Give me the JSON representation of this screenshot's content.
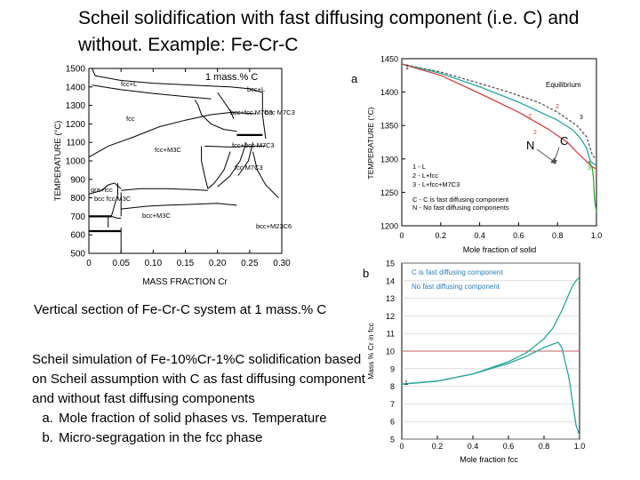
{
  "title": "Scheil solidification with fast diffusing component (i.e. C) and without. Example: Fe-Cr-C",
  "caption_vertical_section": "Vertical section of Fe-Cr-C system at 1 mass.% C",
  "caption_scheil": {
    "intro": "Scheil simulation of Fe-10%Cr-1%C solidification based on Scheil assumption with C as fast diffusing component and without fast diffusing components",
    "items": [
      "Mole fraction of solid phases vs. Temperature",
      "Micro-segragation in the fcc phase"
    ]
  },
  "figure_labels": {
    "a": "a",
    "b": "b"
  },
  "colors": {
    "teal": "#2aa59c",
    "red": "#d04040",
    "green": "#3aa63a",
    "grid": "#c8c8c8",
    "blue_text": "#2a7fc0",
    "redline": "#c06060"
  },
  "chart_data": [
    {
      "type": "line",
      "id": "phase-diagram",
      "title": "1 mass.% C",
      "xlabel": "MASS FRACTION Cr",
      "ylabel": "TEMPERATURE (°C)",
      "xlim": [
        0,
        0.3
      ],
      "ylim": [
        500,
        1500
      ],
      "xticks": [
        "0",
        "0.05",
        "0.10",
        "0.15",
        "0.20",
        "0.25",
        "0.30"
      ],
      "yticks": [
        "500",
        "600",
        "700",
        "800",
        "900",
        "1000",
        "1100",
        "1200",
        "1300",
        "1400",
        "1500"
      ],
      "region_labels": [
        "fcc+L",
        "bcc+L",
        "fcc",
        "bcc+fcc M7C3",
        "bcc M7C3",
        "fcc+M3C",
        "fcc+bcc M7C3",
        "fcc M7C3",
        "gra+fcc",
        "bcc fcc M3C",
        "bcc+M3C",
        "bcc+M23C6"
      ],
      "boundaries": [
        {
          "points": [
            [
              0.005,
              1500
            ],
            [
              0.01,
              1460
            ],
            [
              0.05,
              1435
            ],
            [
              0.1,
              1420
            ],
            [
              0.16,
              1410
            ],
            [
              0.22,
              1400
            ],
            [
              0.25,
              1390
            ],
            [
              0.27,
              1370
            ]
          ]
        },
        {
          "points": [
            [
              0.005,
              1410
            ],
            [
              0.05,
              1385
            ],
            [
              0.1,
              1365
            ],
            [
              0.15,
              1348
            ],
            [
              0.19,
              1335
            ]
          ]
        },
        {
          "points": [
            [
              0.2,
              1370
            ],
            [
              0.21,
              1320
            ],
            [
              0.22,
              1270
            ],
            [
              0.225,
              1230
            ]
          ]
        },
        {
          "points": [
            [
              0.27,
              1370
            ],
            [
              0.27,
              1250
            ],
            [
              0.275,
              1120
            ]
          ]
        },
        {
          "points": [
            [
              0.165,
              1330
            ],
            [
              0.17,
              1300
            ],
            [
              0.175,
              1250
            ],
            [
              0.19,
              1200
            ],
            [
              0.21,
              1170
            ],
            [
              0.23,
              1160
            ]
          ]
        },
        {
          "points": [
            [
              0.0,
              1020
            ],
            [
              0.03,
              1080
            ],
            [
              0.07,
              1130
            ],
            [
              0.11,
              1185
            ],
            [
              0.15,
              1220
            ],
            [
              0.19,
              1250
            ],
            [
              0.22,
              1262
            ],
            [
              0.26,
              1255
            ]
          ]
        },
        {
          "points": [
            [
              0.18,
              1080
            ],
            [
              0.22,
              1075
            ],
            [
              0.255,
              1080
            ],
            [
              0.275,
              1080
            ]
          ]
        },
        {
          "points": [
            [
              0.175,
              1080
            ],
            [
              0.175,
              1000
            ],
            [
              0.18,
              920
            ],
            [
              0.185,
              850
            ]
          ]
        },
        {
          "points": [
            [
              0.22,
              1050
            ],
            [
              0.21,
              950
            ],
            [
              0.195,
              880
            ],
            [
              0.185,
              850
            ]
          ]
        },
        {
          "points": [
            [
              0.245,
              1100
            ],
            [
              0.235,
              1000
            ],
            [
              0.22,
              920
            ],
            [
              0.2,
              860
            ]
          ]
        },
        {
          "points": [
            [
              0.255,
              1100
            ],
            [
              0.248,
              1000
            ],
            [
              0.232,
              920
            ]
          ]
        },
        {
          "points": [
            [
              0.255,
              1050
            ],
            [
              0.262,
              950
            ],
            [
              0.275,
              870
            ],
            [
              0.295,
              800
            ]
          ]
        },
        {
          "points": [
            [
              0.0,
              820
            ],
            [
              0.02,
              840
            ],
            [
              0.03,
              870
            ],
            [
              0.04,
              880
            ],
            [
              0.05,
              850
            ]
          ]
        },
        {
          "points": [
            [
              0.045,
              880
            ],
            [
              0.045,
              820
            ],
            [
              0.04,
              760
            ],
            [
              0.035,
              700
            ]
          ]
        },
        {
          "points": [
            [
              0.05,
              840
            ],
            [
              0.08,
              850
            ],
            [
              0.12,
              850
            ],
            [
              0.16,
              845
            ],
            [
              0.185,
              840
            ]
          ]
        },
        {
          "points": [
            [
              0.05,
              830
            ],
            [
              0.05,
              700
            ]
          ]
        },
        {
          "points": [
            [
              0.05,
              740
            ],
            [
              0.09,
              755
            ],
            [
              0.12,
              760
            ],
            [
              0.16,
              765
            ],
            [
              0.2,
              770
            ],
            [
              0.23,
              760
            ]
          ]
        },
        {
          "points": [
            [
              0.035,
              700
            ],
            [
              0.045,
              690
            ],
            [
              0.05,
              690
            ]
          ]
        },
        {
          "points": [
            [
              0.05,
              640
            ],
            [
              0.05,
              500
            ]
          ]
        },
        {
          "points": [
            [
              0.03,
              700
            ],
            [
              0.03,
              640
            ]
          ]
        }
      ],
      "thick_segments": [
        {
          "points": [
            [
              0.0,
              620
            ],
            [
              0.05,
              620
            ]
          ]
        },
        {
          "points": [
            [
              0.23,
              1140
            ],
            [
              0.27,
              1140
            ]
          ]
        },
        {
          "points": [
            [
              0.0,
              700
            ],
            [
              0.035,
              700
            ]
          ]
        }
      ]
    },
    {
      "type": "line",
      "id": "scheil-temperature",
      "xlabel": "Mole fraction of solid",
      "ylabel": "TEMPERATURE (°C)",
      "xlim": [
        0,
        1
      ],
      "ylim": [
        1200,
        1450
      ],
      "xticks": [
        "0",
        "0.2",
        "0.4",
        "0.6",
        "0.8",
        "1.0"
      ],
      "yticks": [
        "1200",
        "1250",
        "1300",
        "1350",
        "1400",
        "1450"
      ],
      "series": [
        {
          "name": "Equilibrium",
          "x": [
            0,
            0.2,
            0.4,
            0.55,
            0.7,
            0.8,
            0.9,
            0.95,
            0.98,
            1.0
          ],
          "y": [
            1442,
            1430,
            1413,
            1400,
            1385,
            1370,
            1350,
            1333,
            1305,
            1300
          ]
        },
        {
          "name": "C - C is fast diffusing component",
          "x": [
            0,
            0.2,
            0.4,
            0.6,
            0.8,
            0.88,
            0.92,
            0.95,
            0.97,
            1.0
          ],
          "y": [
            1442,
            1428,
            1408,
            1385,
            1358,
            1343,
            1330,
            1316,
            1296,
            1290
          ]
        },
        {
          "name": "N - No fast diffusing components",
          "x": [
            0,
            0.2,
            0.4,
            0.6,
            0.75,
            0.85,
            0.9,
            0.95,
            0.98,
            1.0
          ],
          "y": [
            1442,
            1425,
            1398,
            1370,
            1345,
            1325,
            1310,
            1296,
            1288,
            1285
          ]
        },
        {
          "name": "3 - L+fcc+M7C3 tail",
          "x": [
            0.96,
            0.97,
            0.98,
            0.985,
            0.99,
            1.0
          ],
          "y": [
            1297,
            1292,
            1285,
            1270,
            1240,
            1220
          ]
        }
      ],
      "labels": {
        "equilibrium": "Equilibrium",
        "C": "C",
        "N": "N",
        "numbers": [
          "1",
          "2",
          "3",
          "2",
          "2",
          "3"
        ]
      },
      "legend": [
        "1 - L",
        "2 - L+fcc",
        "3 - L+fcc+M7C3",
        "C - C is fast diffusing component",
        "N - No fast diffusing components"
      ]
    },
    {
      "type": "line",
      "id": "microsegregation",
      "xlabel": "Mole fraction fcc",
      "ylabel": "Mass % Cr in fcc",
      "xlim": [
        0,
        1
      ],
      "ylim": [
        5,
        15
      ],
      "xticks": [
        "0",
        "0.2",
        "0.4",
        "0.6",
        "0.8",
        "1.0"
      ],
      "yticks": [
        "5",
        "6",
        "7",
        "8",
        "9",
        "10",
        "11",
        "12",
        "13",
        "14",
        "15"
      ],
      "reference_line": 10,
      "series": [
        {
          "name": "C is fast diffusing component",
          "x": [
            0,
            0.2,
            0.4,
            0.6,
            0.7,
            0.8,
            0.85,
            0.9,
            0.93,
            0.96,
            0.98,
            1.0
          ],
          "y": [
            8.12,
            8.3,
            8.7,
            9.4,
            9.9,
            10.7,
            11.3,
            12.3,
            13.0,
            13.7,
            14.0,
            14.2
          ]
        },
        {
          "name": "No fast diffusing component",
          "x": [
            0,
            0.2,
            0.4,
            0.6,
            0.7,
            0.8,
            0.85,
            0.88,
            0.9,
            0.94,
            0.98,
            1.0
          ],
          "y": [
            8.12,
            8.3,
            8.7,
            9.3,
            9.7,
            10.2,
            10.4,
            10.5,
            10.2,
            8.5,
            5.8,
            5.2
          ]
        }
      ],
      "point_label": "1"
    }
  ]
}
